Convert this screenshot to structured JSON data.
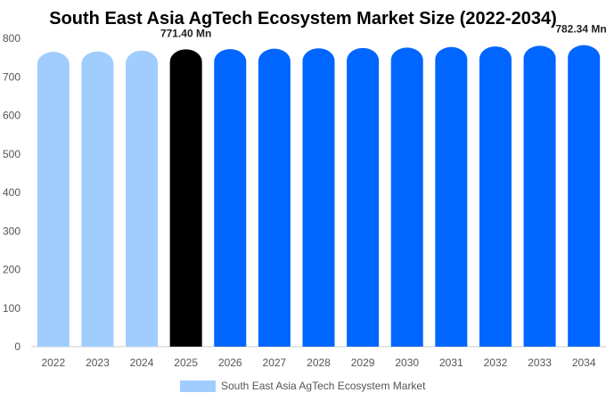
{
  "chart_data": {
    "type": "bar",
    "title": "South East Asia AgTech Ecosystem Market Size (2022-2034)",
    "xlabel": "",
    "ylabel": "",
    "categories": [
      "2022",
      "2023",
      "2024",
      "2025",
      "2026",
      "2027",
      "2028",
      "2029",
      "2030",
      "2031",
      "2032",
      "2033",
      "2034"
    ],
    "series": [
      {
        "name": "South East Asia AgTech Ecosystem Market",
        "values": [
          765,
          766,
          768,
          771.4,
          772,
          773,
          774,
          775,
          776,
          777.5,
          779,
          780.5,
          782.34
        ]
      }
    ],
    "ylim": [
      0,
      800
    ],
    "yticks": [
      "0",
      "100",
      "200",
      "300",
      "400",
      "500",
      "600",
      "700",
      "800"
    ],
    "data_labels": [
      {
        "category": "2025",
        "text": "771.40 Mn"
      },
      {
        "category": "2034",
        "text": "782.34 Mn"
      }
    ],
    "colors": {
      "historical": "#a0cdfd",
      "current": "#000000",
      "forecast": "#0066ff",
      "legend": "#a0cdfd"
    },
    "legend_position": "bottom",
    "grid": false
  }
}
